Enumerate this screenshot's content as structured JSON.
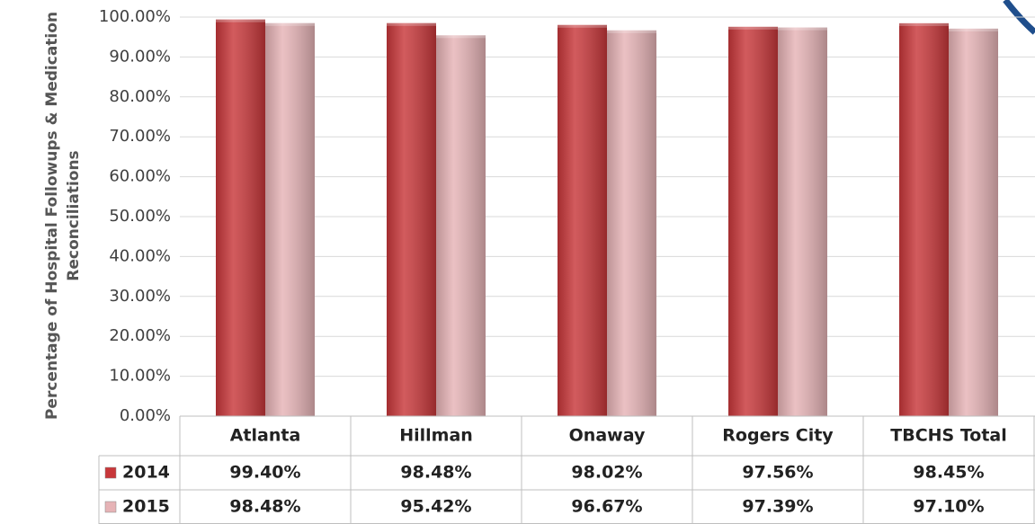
{
  "chart_data": {
    "type": "bar",
    "ylabel": [
      "Percentage of Hospital Followups & Medication",
      "Reconciliations"
    ],
    "categories": [
      "Atlanta",
      "Hillman",
      "Onaway",
      "Rogers City",
      "TBCHS Total"
    ],
    "series": [
      {
        "name": "2014",
        "color": "#c8373a",
        "values": [
          99.4,
          98.48,
          98.02,
          97.56,
          98.45
        ],
        "value_labels": [
          "99.40%",
          "98.48%",
          "98.02%",
          "97.56%",
          "98.45%"
        ]
      },
      {
        "name": "2015",
        "color": "#e6b3b6",
        "values": [
          98.48,
          95.42,
          96.67,
          97.39,
          97.1
        ],
        "value_labels": [
          "98.48%",
          "95.42%",
          "96.67%",
          "97.39%",
          "97.10%"
        ]
      }
    ],
    "ylim": [
      0,
      100
    ],
    "yticks": [
      {
        "value": 0,
        "label": "0.00%"
      },
      {
        "value": 10,
        "label": "10.00%"
      },
      {
        "value": 20,
        "label": "20.00%"
      },
      {
        "value": 30,
        "label": "30.00%"
      },
      {
        "value": 40,
        "label": "40.00%"
      },
      {
        "value": 50,
        "label": "50.00%"
      },
      {
        "value": 60,
        "label": "60.00%"
      },
      {
        "value": 70,
        "label": "70.00%"
      },
      {
        "value": 80,
        "label": "80.00%"
      },
      {
        "value": 90,
        "label": "90.00%"
      },
      {
        "value": 100,
        "label": "100.00%"
      }
    ],
    "grid": true
  }
}
